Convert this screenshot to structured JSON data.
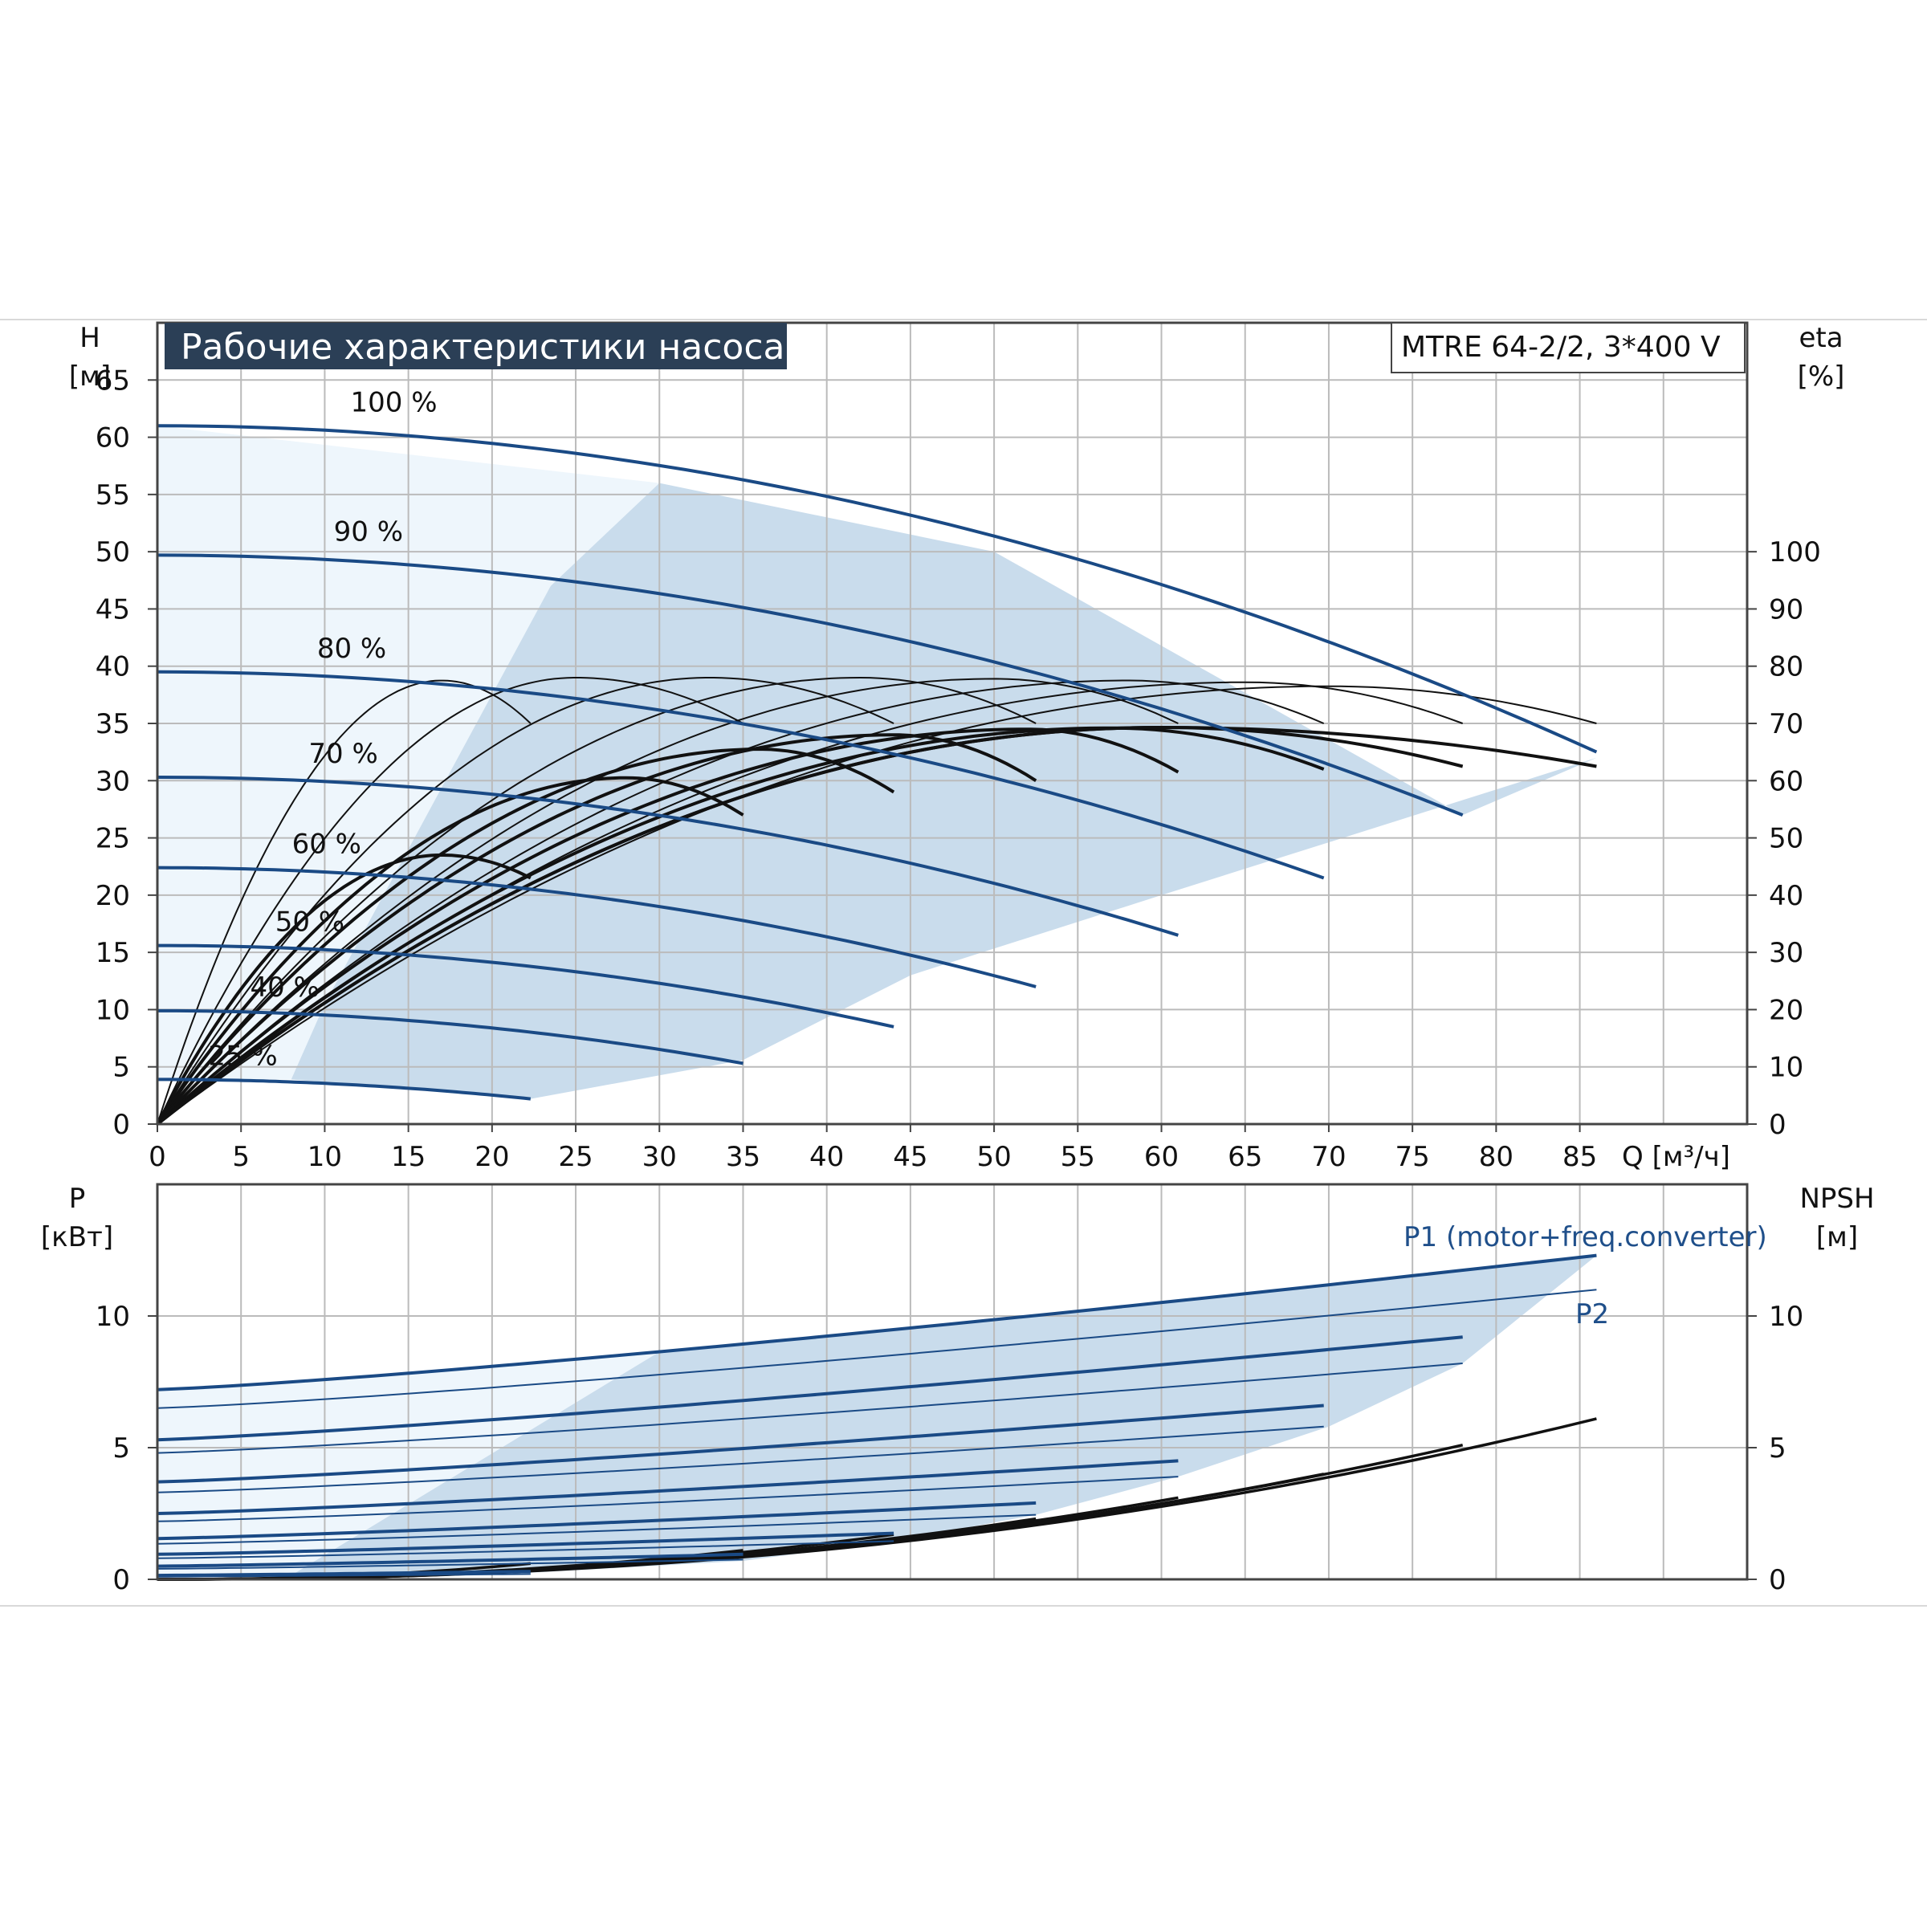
{
  "chart_data": [
    {
      "type": "line",
      "title": "Рабочие характеристики насоса",
      "model": "MTRE 64-2/2, 3*400 V",
      "xlabel": "Q [м³/ч]",
      "ylabel": "H",
      "ylabel_unit": "[м]",
      "y2label": "eta",
      "y2label_unit": "[%]",
      "xlim": [
        0,
        95
      ],
      "ylim": [
        0,
        70
      ],
      "y2lim": [
        0,
        140
      ],
      "x_ticks": [
        0,
        5,
        10,
        15,
        20,
        25,
        30,
        35,
        40,
        45,
        50,
        55,
        60,
        65,
        70,
        75,
        80,
        85
      ],
      "y_ticks": [
        0,
        5,
        10,
        15,
        20,
        25,
        30,
        35,
        40,
        45,
        50,
        55,
        60,
        65
      ],
      "y2_ticks": [
        0,
        10,
        20,
        30,
        40,
        50,
        60,
        70,
        80,
        90,
        100
      ],
      "grid": true,
      "colors": {
        "curve": "#1a4a85",
        "eff": "#111111",
        "band": "#c9dcec",
        "band_light": "#eef6fc",
        "title_bg": "#2b3f56",
        "grid": "#bbbbbb"
      },
      "head_curves": [
        {
          "label": "100 %",
          "h0": 61,
          "qmax": 86,
          "hend": 32.5
        },
        {
          "label": "90 %",
          "h0": 49.7,
          "qmax": 78,
          "hend": 27
        },
        {
          "label": "80 %",
          "h0": 39.5,
          "qmax": 69.7,
          "hend": 21.5
        },
        {
          "label": "70 %",
          "h0": 30.3,
          "qmax": 61,
          "hend": 16.5
        },
        {
          "label": "60 %",
          "h0": 22.4,
          "qmax": 52.5,
          "hend": 12
        },
        {
          "label": "50 %",
          "h0": 15.6,
          "qmax": 44,
          "hend": 8.5
        },
        {
          "label": "40 %",
          "h0": 9.9,
          "qmax": 35,
          "hend": 5.3
        },
        {
          "label": "25 %",
          "h0": 3.9,
          "qmax": 22.3,
          "hend": 2.2
        }
      ],
      "eta_curves": [
        {
          "qpeak": 17,
          "etapeak": 77.5,
          "qmax": 22.3,
          "etaend": 70,
          "heavy": false
        },
        {
          "qpeak": 25,
          "etapeak": 78,
          "qmax": 35,
          "etaend": 70,
          "heavy": false
        },
        {
          "qpeak": 33,
          "etapeak": 78,
          "qmax": 44,
          "etaend": 70,
          "heavy": false
        },
        {
          "qpeak": 42,
          "etapeak": 78,
          "qmax": 52.5,
          "etaend": 70,
          "heavy": false
        },
        {
          "qpeak": 50,
          "etapeak": 77.8,
          "qmax": 61,
          "etaend": 70,
          "heavy": false
        },
        {
          "qpeak": 58,
          "etapeak": 77.5,
          "qmax": 69.7,
          "etaend": 70,
          "heavy": false
        },
        {
          "qpeak": 65,
          "etapeak": 77.2,
          "qmax": 78,
          "etaend": 70,
          "heavy": false
        },
        {
          "qpeak": 70,
          "etapeak": 76.5,
          "qmax": 86,
          "etaend": 70,
          "heavy": false
        },
        {
          "qpeak": 17,
          "etapeak": 47,
          "qmax": 22.3,
          "etaend": 43,
          "heavy": true
        },
        {
          "qpeak": 28,
          "etapeak": 60.5,
          "qmax": 35,
          "etaend": 54,
          "heavy": true
        },
        {
          "qpeak": 36,
          "etapeak": 65.5,
          "qmax": 44,
          "etaend": 58,
          "heavy": true
        },
        {
          "qpeak": 44,
          "etapeak": 68,
          "qmax": 52.5,
          "etaend": 60,
          "heavy": true
        },
        {
          "qpeak": 52,
          "etapeak": 69,
          "qmax": 61,
          "etaend": 61.5,
          "heavy": true
        },
        {
          "qpeak": 57,
          "etapeak": 69.2,
          "qmax": 69.7,
          "etaend": 62,
          "heavy": true
        },
        {
          "qpeak": 60,
          "etapeak": 69.3,
          "qmax": 78,
          "etaend": 62.5,
          "heavy": true
        },
        {
          "qpeak": 60,
          "etapeak": 69.3,
          "qmax": 86,
          "etaend": 62.5,
          "heavy": true
        }
      ],
      "envelope": {
        "light": [
          [
            0,
            61
          ],
          [
            30,
            56
          ],
          [
            23.5,
            47
          ],
          [
            10,
            10.5
          ],
          [
            8,
            3.9
          ],
          [
            0,
            3.9
          ]
        ],
        "band": [
          [
            30,
            56
          ],
          [
            50,
            50
          ],
          [
            78,
            27
          ],
          [
            86,
            32
          ],
          [
            60,
            20
          ],
          [
            45,
            13
          ],
          [
            35,
            5.6
          ],
          [
            22.3,
            2.2
          ],
          [
            8,
            3.9
          ],
          [
            10,
            10.5
          ],
          [
            23.5,
            47
          ]
        ]
      }
    },
    {
      "type": "line",
      "ylabel": "P",
      "ylabel_unit": "[кВт]",
      "y2label": "NPSH",
      "y2label_unit": "[м]",
      "xlim": [
        0,
        95
      ],
      "ylim": [
        0,
        15
      ],
      "y_ticks": [
        0,
        5,
        10
      ],
      "y2_ticks": [
        0,
        5,
        10
      ],
      "grid": true,
      "series_labels": [
        "P1 (motor+freq.converter)",
        "P2"
      ],
      "p1_curves": [
        {
          "qmax": 86,
          "p0": 7.2,
          "pend": 12.3
        },
        {
          "qmax": 78,
          "p0": 5.3,
          "pend": 9.2
        },
        {
          "qmax": 69.7,
          "p0": 3.7,
          "pend": 6.6
        },
        {
          "qmax": 61,
          "p0": 2.5,
          "pend": 4.5
        },
        {
          "qmax": 52.5,
          "p0": 1.55,
          "pend": 2.9
        },
        {
          "qmax": 44,
          "p0": 0.95,
          "pend": 1.75
        },
        {
          "qmax": 35,
          "p0": 0.5,
          "pend": 0.95
        },
        {
          "qmax": 22.3,
          "p0": 0.15,
          "pend": 0.3
        }
      ],
      "p2_curves": [
        {
          "qmax": 86,
          "p0": 6.5,
          "pend": 11.0
        },
        {
          "qmax": 78,
          "p0": 4.8,
          "pend": 8.2
        },
        {
          "qmax": 69.7,
          "p0": 3.3,
          "pend": 5.8
        },
        {
          "qmax": 61,
          "p0": 2.2,
          "pend": 3.9
        },
        {
          "qmax": 52.5,
          "p0": 1.35,
          "pend": 2.45
        },
        {
          "qmax": 44,
          "p0": 0.8,
          "pend": 1.45
        },
        {
          "qmax": 35,
          "p0": 0.4,
          "pend": 0.75
        },
        {
          "qmax": 22.3,
          "p0": 0.1,
          "pend": 0.2
        }
      ],
      "npsh_curves": [
        {
          "qmax": 86,
          "nend": 6.1
        },
        {
          "qmax": 78,
          "nend": 5.1
        },
        {
          "qmax": 69.7,
          "nend": 4.0
        },
        {
          "qmax": 61,
          "nend": 3.1
        },
        {
          "qmax": 52.5,
          "nend": 2.3
        },
        {
          "qmax": 44,
          "nend": 1.7
        },
        {
          "qmax": 35,
          "nend": 1.1
        },
        {
          "qmax": 22.3,
          "nend": 0.6
        }
      ]
    }
  ]
}
